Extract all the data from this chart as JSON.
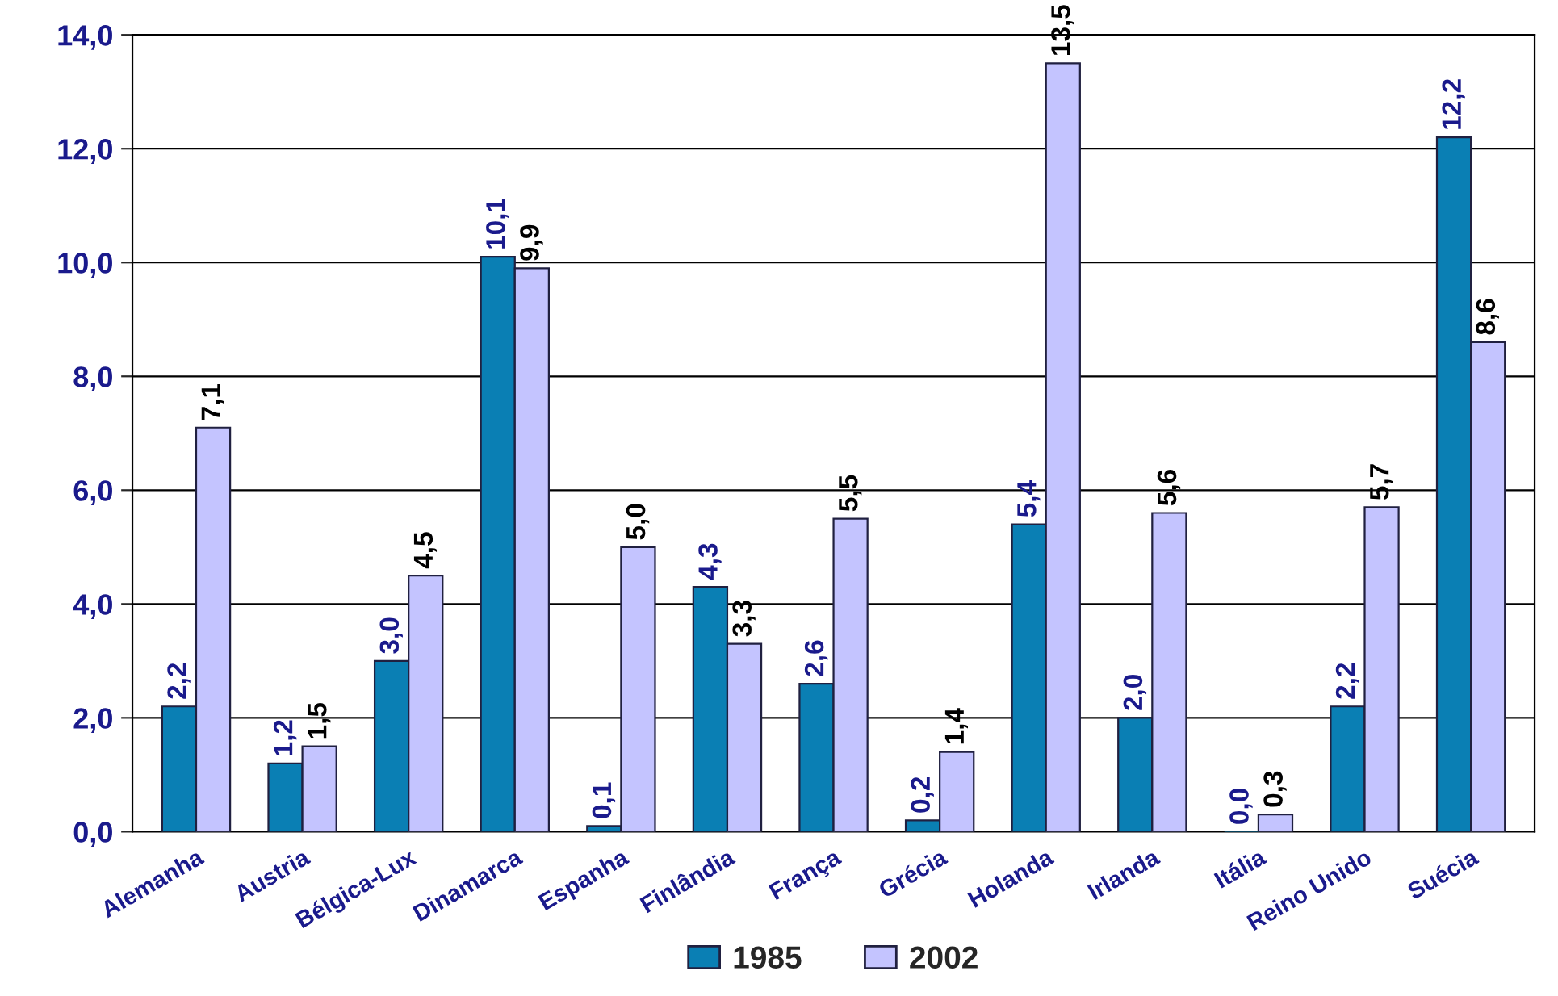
{
  "chart_data": {
    "type": "bar",
    "categories": [
      "Alemanha",
      "Austria",
      "Bélgica-Lux",
      "Dinamarca",
      "Espanha",
      "Finlândia",
      "França",
      "Grécia",
      "Holanda",
      "Irlanda",
      "Itália",
      "Reino Unido",
      "Suécia"
    ],
    "series": [
      {
        "name": "1985",
        "color": "#0a7fb4",
        "values": [
          2.2,
          1.2,
          3.0,
          10.1,
          0.1,
          4.3,
          2.6,
          0.2,
          5.4,
          2.0,
          0.0,
          2.2,
          12.2
        ],
        "value_labels": [
          "2,2",
          "1,2",
          "3,0",
          "10,1",
          "0,1",
          "4,3",
          "2,6",
          "0,2",
          "5,4",
          "2,0",
          "0,0",
          "2,2",
          "12,2"
        ]
      },
      {
        "name": "2002",
        "color": "#c4c4ff",
        "values": [
          7.1,
          1.5,
          4.5,
          9.9,
          5.0,
          3.3,
          5.5,
          1.4,
          13.5,
          5.6,
          0.3,
          5.7,
          8.6
        ],
        "value_labels": [
          "7,1",
          "1,5",
          "4,5",
          "9,9",
          "5,0",
          "3,3",
          "5,5",
          "1,4",
          "13,5",
          "5,6",
          "0,3",
          "5,7",
          "8,6"
        ]
      }
    ],
    "ylim": [
      0,
      14
    ],
    "yticks": [
      {
        "value": 0,
        "label": "0,0"
      },
      {
        "value": 2,
        "label": "2,0"
      },
      {
        "value": 4,
        "label": "4,0"
      },
      {
        "value": 6,
        "label": "6,0"
      },
      {
        "value": 8,
        "label": "8,0"
      },
      {
        "value": 10,
        "label": "10,0"
      },
      {
        "value": 12,
        "label": "12,0"
      },
      {
        "value": 14,
        "label": "14,0"
      }
    ],
    "grid": "y",
    "legend": "bottom"
  }
}
